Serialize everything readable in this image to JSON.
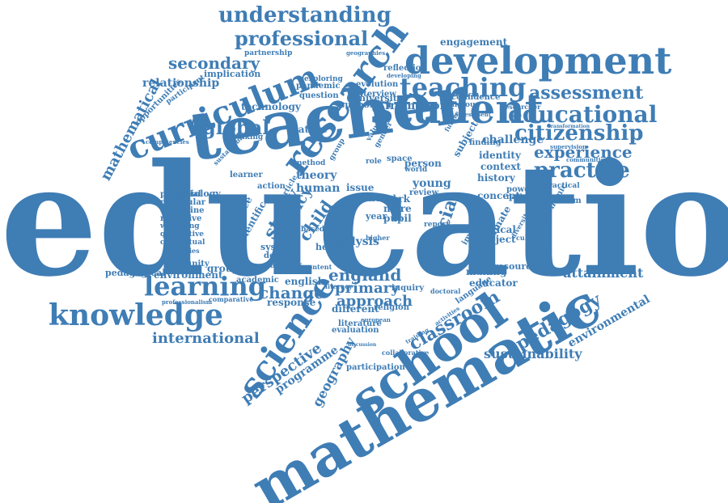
{
  "color": "#3f7db5",
  "words": [
    {
      "id": "education",
      "text": "education"
    },
    {
      "id": "mathematic",
      "text": "mathematic"
    },
    {
      "id": "teacher",
      "text": "teacher"
    },
    {
      "id": "development",
      "text": "development"
    },
    {
      "id": "student",
      "text": "student"
    },
    {
      "id": "research",
      "text": "research"
    },
    {
      "id": "curriculum",
      "text": "curriculum"
    },
    {
      "id": "school",
      "text": "school"
    },
    {
      "id": "science",
      "text": "science"
    },
    {
      "id": "knowledge",
      "text": "knowledge"
    },
    {
      "id": "learning",
      "text": "learning"
    },
    {
      "id": "teaching",
      "text": "teaching"
    },
    {
      "id": "understanding",
      "text": "understanding"
    },
    {
      "id": "professional",
      "text": "professional"
    },
    {
      "id": "educational",
      "text": "educational"
    },
    {
      "id": "citizenship",
      "text": "citizenship"
    },
    {
      "id": "practice",
      "text": "practice"
    },
    {
      "id": "assessment",
      "text": "assessment"
    },
    {
      "id": "experience",
      "text": "experience"
    },
    {
      "id": "global",
      "text": "global"
    },
    {
      "id": "secondary",
      "text": "secondary"
    },
    {
      "id": "classroom",
      "text": "classroom"
    },
    {
      "id": "pedagogy",
      "text": "pedagogy"
    },
    {
      "id": "perspective",
      "text": "perspective"
    },
    {
      "id": "international",
      "text": "international"
    },
    {
      "id": "sustainability",
      "text": "sustainability"
    },
    {
      "id": "england",
      "text": "england"
    },
    {
      "id": "primary",
      "text": "primary"
    },
    {
      "id": "approach",
      "text": "approach"
    },
    {
      "id": "change",
      "text": "change"
    },
    {
      "id": "geography",
      "text": "geography"
    },
    {
      "id": "social",
      "text": "social"
    },
    {
      "id": "study",
      "text": "study"
    },
    {
      "id": "child",
      "text": "child"
    },
    {
      "id": "policy",
      "text": "policy"
    },
    {
      "id": "mathematical",
      "text": "mathematical"
    },
    {
      "id": "attainment",
      "text": "attainment"
    },
    {
      "id": "environmental",
      "text": "environmental"
    },
    {
      "id": "programme",
      "text": "programme"
    },
    {
      "id": "relationship",
      "text": "relationship"
    },
    {
      "id": "challenge",
      "text": "challenge"
    },
    {
      "id": "framework",
      "text": "framework"
    },
    {
      "id": "engagement",
      "text": "engagement"
    },
    {
      "id": "technology",
      "text": "technology"
    },
    {
      "id": "implication",
      "text": "implication"
    },
    {
      "id": "analysis",
      "text": "analysis"
    },
    {
      "id": "theory",
      "text": "theory"
    },
    {
      "id": "human",
      "text": "human"
    },
    {
      "id": "issue",
      "text": "issue"
    },
    {
      "id": "nature",
      "text": "nature"
    },
    {
      "id": "environment",
      "text": "environment"
    },
    {
      "id": "community",
      "text": "community"
    },
    {
      "id": "grouping",
      "text": "grouping"
    },
    {
      "id": "pedagogical",
      "text": "pedagogical"
    },
    {
      "id": "academic",
      "text": "academic"
    },
    {
      "id": "response",
      "text": "response"
    },
    {
      "id": "english",
      "text": "english"
    },
    {
      "id": "agency",
      "text": "agency"
    },
    {
      "id": "system",
      "text": "system"
    },
    {
      "id": "design",
      "text": "design"
    },
    {
      "id": "health",
      "text": "health"
    },
    {
      "id": "work",
      "text": "work"
    },
    {
      "id": "more",
      "text": "more"
    },
    {
      "id": "pupil",
      "text": "pupil"
    },
    {
      "id": "year",
      "text": "year"
    },
    {
      "id": "person",
      "text": "person"
    },
    {
      "id": "young",
      "text": "young"
    },
    {
      "id": "review",
      "text": "review"
    },
    {
      "id": "concept",
      "text": "concept"
    },
    {
      "id": "critical",
      "text": "critical"
    },
    {
      "id": "project",
      "text": "project"
    },
    {
      "id": "history",
      "text": "history"
    },
    {
      "id": "context",
      "text": "context"
    },
    {
      "id": "identity",
      "text": "identity"
    },
    {
      "id": "finding",
      "text": "finding"
    },
    {
      "id": "resource",
      "text": "resource"
    },
    {
      "id": "making",
      "text": "making"
    },
    {
      "id": "educator",
      "text": "educator"
    },
    {
      "id": "different",
      "text": "different"
    },
    {
      "id": "religion",
      "text": "religion"
    },
    {
      "id": "literature",
      "text": "literature"
    },
    {
      "id": "evaluation",
      "text": "evaluation"
    },
    {
      "id": "participation",
      "text": "participation"
    },
    {
      "id": "collaborative",
      "text": "collaborative"
    },
    {
      "id": "university",
      "text": "university"
    },
    {
      "id": "interview",
      "text": "interview"
    },
    {
      "id": "evolution",
      "text": "evolution"
    },
    {
      "id": "support",
      "text": "support"
    },
    {
      "id": "question",
      "text": "question"
    },
    {
      "id": "pandemic",
      "text": "pandemic"
    },
    {
      "id": "exploring",
      "text": "exploring"
    },
    {
      "id": "reflection",
      "text": "reflection"
    },
    {
      "id": "confidence",
      "text": "confidence"
    },
    {
      "id": "religious",
      "text": "religious"
    },
    {
      "id": "partnership",
      "text": "partnership"
    },
    {
      "id": "opportunities",
      "text": "opportunities"
    },
    {
      "id": "participant",
      "text": "participant"
    },
    {
      "id": "potential",
      "text": "potential"
    },
    {
      "id": "particular",
      "text": "particular"
    },
    {
      "id": "discipline",
      "text": "discipline"
    },
    {
      "id": "narrative",
      "text": "narrative"
    },
    {
      "id": "wellbeing",
      "text": "wellbeing"
    },
    {
      "id": "qualitative",
      "text": "qualitative"
    },
    {
      "id": "conceptual",
      "text": "conceptual"
    },
    {
      "id": "strategies",
      "text": "strategies"
    },
    {
      "id": "biology",
      "text": "biology"
    },
    {
      "id": "learner",
      "text": "learner"
    },
    {
      "id": "evidence",
      "text": "evidence"
    },
    {
      "id": "scientific",
      "text": "scientific"
    },
    {
      "id": "space",
      "text": "space"
    },
    {
      "id": "subject",
      "text": "subject"
    },
    {
      "id": "climate",
      "text": "climate"
    },
    {
      "id": "economic",
      "text": "economic"
    },
    {
      "id": "powerful",
      "text": "powerful"
    },
    {
      "id": "national",
      "text": "national"
    },
    {
      "id": "problem",
      "text": "problem"
    },
    {
      "id": "practical",
      "text": "practical"
    },
    {
      "id": "impact",
      "text": "impact"
    },
    {
      "id": "language",
      "text": "language"
    },
    {
      "id": "geographies",
      "text": "geographies"
    },
    {
      "id": "developing",
      "text": "developing"
    },
    {
      "id": "comparative",
      "text": "comparative"
    },
    {
      "id": "professionalism",
      "text": "professionalism"
    },
    {
      "id": "supervision",
      "text": "supervision"
    },
    {
      "id": "transformation",
      "text": "transformation"
    },
    {
      "id": "researcher",
      "text": "researcher"
    },
    {
      "id": "assessment-small",
      "text": "assessment"
    },
    {
      "id": "action",
      "text": "action"
    },
    {
      "id": "method",
      "text": "method"
    },
    {
      "id": "model",
      "text": "model"
    },
    {
      "id": "thinking",
      "text": "thinking"
    },
    {
      "id": "inquiry",
      "text": "inquiry"
    },
    {
      "id": "literacy",
      "text": "literacy"
    },
    {
      "id": "doctoral",
      "text": "doctoral"
    },
    {
      "id": "report",
      "text": "report"
    },
    {
      "id": "content",
      "text": "content"
    },
    {
      "id": "based",
      "text": "based"
    },
    {
      "id": "higher",
      "text": "higher"
    },
    {
      "id": "article",
      "text": "article"
    },
    {
      "id": "diversity",
      "text": "diversity"
    },
    {
      "id": "cultural",
      "text": "cultural"
    },
    {
      "id": "activities",
      "text": "activities"
    },
    {
      "id": "training",
      "text": "training"
    },
    {
      "id": "european",
      "text": "european"
    },
    {
      "id": "discussion",
      "text": "discussion"
    },
    {
      "id": "competencies",
      "text": "competencies"
    },
    {
      "id": "sustainable",
      "text": "sustainable"
    },
    {
      "id": "communities",
      "text": "communities"
    },
    {
      "id": "value",
      "text": "value"
    },
    {
      "id": "gender",
      "text": "gender"
    },
    {
      "id": "group",
      "text": "group"
    },
    {
      "id": "future",
      "text": "future"
    },
    {
      "id": "world",
      "text": "world"
    },
    {
      "id": "role",
      "text": "role"
    }
  ]
}
